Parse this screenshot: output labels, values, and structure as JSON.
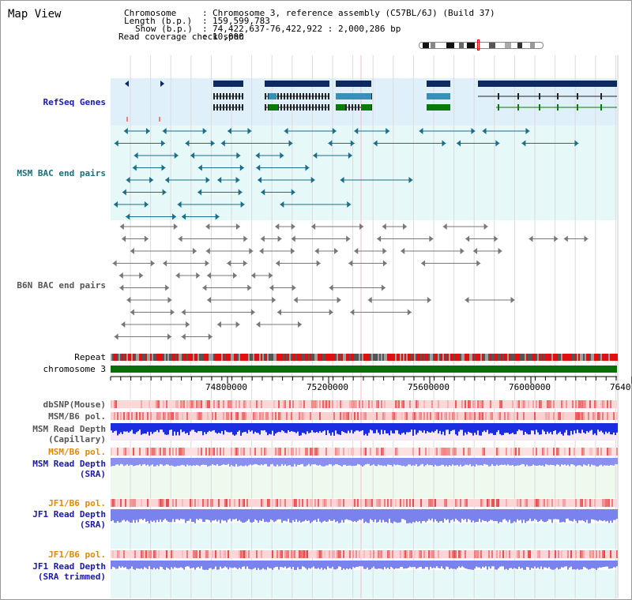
{
  "title": "Map View",
  "info": {
    "chromosome_label": "Chromosome",
    "chromosome_value": "Chromosome 3, reference assembly (C57BL/6J) (Build 37)",
    "length_label": "Length (b.p.)",
    "length_value": "159,599,783",
    "show_label": "Show (b.p.)",
    "show_value": "74,422,637-76,422,922 : 2,000,286 bp",
    "coverage_label": "Read coverage check span",
    "coverage_value": "10,000"
  },
  "tracks": {
    "refseq": "RefSeq Genes",
    "msm_bac": "MSM BAC end pairs",
    "b6n_bac": "B6N BAC end pairs",
    "repeat": "Repeat",
    "chromosome": "chromosome 3",
    "dbsnp": "dbSNP(Mouse)",
    "msm_b6_pol_1": "MSM/B6 pol.",
    "msm_depth_cap_1": "MSM Read Depth",
    "msm_depth_cap_2": "(Capillary)",
    "msm_b6_pol_2": "MSM/B6 pol.",
    "msm_depth_sra_1": "MSM Read Depth",
    "msm_depth_sra_2": "(SRA)",
    "jf1_pol_1": "JF1/B6 pol.",
    "jf1_depth_sra_1": "JF1 Read Depth",
    "jf1_depth_sra_2": "(SRA)",
    "jf1_pol_2": "JF1/B6 pol.",
    "jf1_depth_trim_1": "JF1 Read Depth",
    "jf1_depth_trim_2": "(SRA trimmed)"
  },
  "axis": {
    "ticks": [
      "74800000",
      "75200000",
      "75600000",
      "76000000",
      "7640"
    ]
  },
  "colors": {
    "refseq_label": "#1a1aa6",
    "msm_label": "#1a6e7a",
    "b6n_label": "#555555",
    "gold_label": "#e08a00",
    "navy_label": "#1a1aa6",
    "gene_dark": "#0d2a5e",
    "gene_teal": "#3a8fb8",
    "gene_green": "#0a7a0a",
    "chromosome_bar": "#0a6e0a"
  }
}
